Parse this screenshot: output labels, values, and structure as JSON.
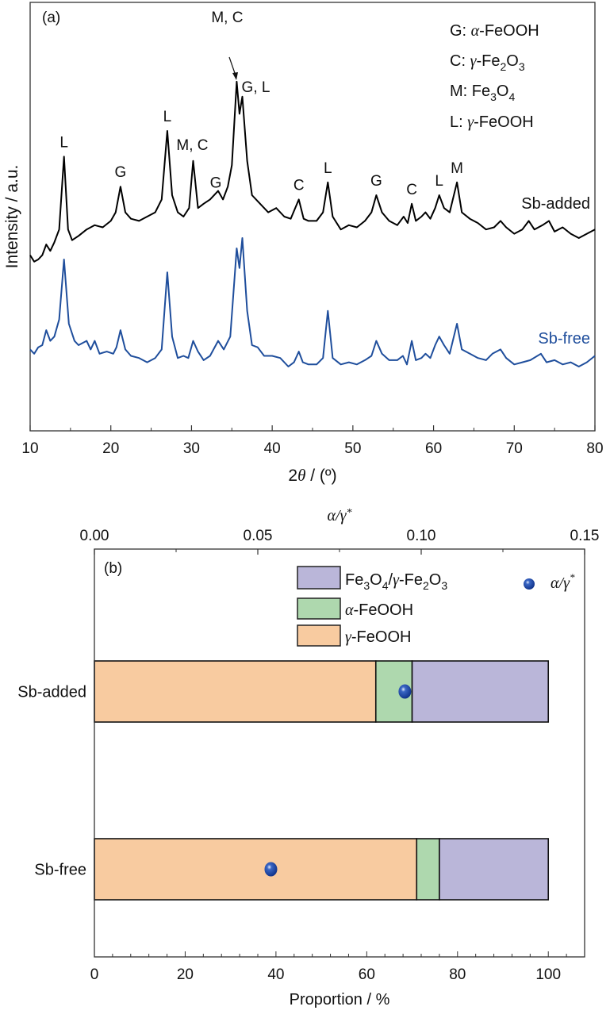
{
  "chart_data": [
    {
      "type": "line",
      "panel_label": "(a)",
      "xlabel_prefix": "2",
      "xlabel_symbol": "θ",
      "xlabel_suffix": " / (º)",
      "ylabel": "Intensity / a.u.",
      "xlim": [
        10,
        80
      ],
      "ylim": [
        0,
        100
      ],
      "xticks": [
        "10",
        "20",
        "30",
        "40",
        "50",
        "60",
        "70",
        "80"
      ],
      "xtick_values": [
        10,
        20,
        30,
        40,
        50,
        60,
        70,
        80
      ],
      "legend_lines": [
        {
          "key": "G: ",
          "greek": "α",
          "text": "-FeOOH"
        },
        {
          "key": "C: ",
          "greek": "γ",
          "text": "-Fe",
          "sub1": "2",
          "text2": "O",
          "sub2": "3"
        },
        {
          "key": "M: ",
          "greek": "",
          "text": "Fe",
          "sub1": "3",
          "text2": "O",
          "sub2": "4"
        },
        {
          "key": "L: ",
          "greek": "γ",
          "text": "-FeOOH"
        }
      ],
      "series": [
        {
          "name": "Sb-added",
          "color": "#000000",
          "points": [
            [
              10,
              41
            ],
            [
              10.5,
              39.5
            ],
            [
              11,
              40
            ],
            [
              11.5,
              41
            ],
            [
              12,
              43.5
            ],
            [
              12.5,
              42
            ],
            [
              13,
              44
            ],
            [
              13.6,
              47
            ],
            [
              14.2,
              64
            ],
            [
              14.7,
              47
            ],
            [
              15.2,
              44.5
            ],
            [
              16,
              45.5
            ],
            [
              17,
              47
            ],
            [
              18,
              48
            ],
            [
              19,
              47.5
            ],
            [
              20,
              49
            ],
            [
              20.6,
              51
            ],
            [
              21.2,
              57
            ],
            [
              21.8,
              51
            ],
            [
              22.5,
              49.5
            ],
            [
              23.5,
              49
            ],
            [
              24.5,
              50
            ],
            [
              25.5,
              51
            ],
            [
              26.3,
              54
            ],
            [
              27,
              70
            ],
            [
              27.6,
              55
            ],
            [
              28.3,
              51
            ],
            [
              29,
              50
            ],
            [
              29.7,
              52
            ],
            [
              30.2,
              63
            ],
            [
              30.8,
              52
            ],
            [
              31.5,
              53
            ],
            [
              32.3,
              54
            ],
            [
              33.3,
              56
            ],
            [
              33.9,
              54
            ],
            [
              34.5,
              57
            ],
            [
              35,
              62
            ],
            [
              35.6,
              81.5
            ],
            [
              35.95,
              74
            ],
            [
              36.3,
              78
            ],
            [
              36.9,
              63
            ],
            [
              37.5,
              55
            ],
            [
              38.5,
              53
            ],
            [
              39.5,
              51
            ],
            [
              40.5,
              52
            ],
            [
              41.5,
              50
            ],
            [
              42.3,
              49.5
            ],
            [
              43.3,
              54
            ],
            [
              43.9,
              49.5
            ],
            [
              44.5,
              49
            ],
            [
              45.5,
              49
            ],
            [
              46.3,
              51
            ],
            [
              46.9,
              58
            ],
            [
              47.5,
              50
            ],
            [
              48.5,
              47
            ],
            [
              49.5,
              48
            ],
            [
              50.5,
              47.5
            ],
            [
              51.5,
              49
            ],
            [
              52.3,
              51
            ],
            [
              52.9,
              55
            ],
            [
              53.6,
              51
            ],
            [
              54.5,
              49
            ],
            [
              55.5,
              48
            ],
            [
              56.3,
              50
            ],
            [
              56.8,
              48.5
            ],
            [
              57.3,
              53
            ],
            [
              57.8,
              49
            ],
            [
              58.5,
              50
            ],
            [
              59,
              51
            ],
            [
              59.6,
              49.5
            ],
            [
              60.2,
              52
            ],
            [
              60.7,
              55
            ],
            [
              61.3,
              52
            ],
            [
              62,
              51
            ],
            [
              62.9,
              58
            ],
            [
              63.5,
              51
            ],
            [
              64.5,
              49.5
            ],
            [
              65.5,
              48.5
            ],
            [
              66.5,
              47
            ],
            [
              67.5,
              47.5
            ],
            [
              68.3,
              49
            ],
            [
              69,
              47.5
            ],
            [
              70,
              46
            ],
            [
              71,
              47
            ],
            [
              71.8,
              49
            ],
            [
              72.5,
              47
            ],
            [
              73.5,
              48
            ],
            [
              74.3,
              49
            ],
            [
              75,
              46.5
            ],
            [
              76,
              47.5
            ],
            [
              77,
              46
            ],
            [
              78,
              45
            ],
            [
              79,
              46
            ],
            [
              80,
              47
            ]
          ]
        },
        {
          "name": "Sb-free",
          "color": "#1f4e9c",
          "points": [
            [
              10,
              19
            ],
            [
              10.5,
              18
            ],
            [
              11,
              19.5
            ],
            [
              11.5,
              20
            ],
            [
              12,
              23.5
            ],
            [
              12.5,
              21
            ],
            [
              13,
              22
            ],
            [
              13.6,
              26
            ],
            [
              14.2,
              40
            ],
            [
              14.8,
              25
            ],
            [
              15.5,
              21
            ],
            [
              16,
              20
            ],
            [
              17,
              21
            ],
            [
              17.5,
              19
            ],
            [
              18,
              21
            ],
            [
              18.6,
              18
            ],
            [
              19.5,
              18.5
            ],
            [
              20.3,
              18
            ],
            [
              20.7,
              19.5
            ],
            [
              21.2,
              23.5
            ],
            [
              21.8,
              19
            ],
            [
              22.5,
              17.5
            ],
            [
              23.5,
              17
            ],
            [
              24.5,
              16
            ],
            [
              25.5,
              17
            ],
            [
              26.3,
              19
            ],
            [
              27,
              37
            ],
            [
              27.6,
              22
            ],
            [
              28.3,
              17
            ],
            [
              29,
              17.5
            ],
            [
              29.6,
              17
            ],
            [
              30.2,
              21
            ],
            [
              30.8,
              18.5
            ],
            [
              31.5,
              16.5
            ],
            [
              32.3,
              17.5
            ],
            [
              33.3,
              21
            ],
            [
              34,
              19
            ],
            [
              34.8,
              22
            ],
            [
              35.6,
              42.6
            ],
            [
              35.95,
              38
            ],
            [
              36.3,
              45
            ],
            [
              36.9,
              28
            ],
            [
              37.5,
              20
            ],
            [
              38.2,
              19.5
            ],
            [
              39,
              17.5
            ],
            [
              40,
              17.5
            ],
            [
              41,
              17
            ],
            [
              42,
              15
            ],
            [
              42.7,
              16
            ],
            [
              43.3,
              18.5
            ],
            [
              43.8,
              16
            ],
            [
              44.5,
              15.5
            ],
            [
              45.5,
              15.5
            ],
            [
              46.3,
              17
            ],
            [
              46.9,
              28
            ],
            [
              47.5,
              17
            ],
            [
              48.5,
              15.5
            ],
            [
              49.5,
              16
            ],
            [
              50.5,
              15.5
            ],
            [
              51.5,
              16.5
            ],
            [
              52.3,
              17.5
            ],
            [
              52.9,
              21
            ],
            [
              53.6,
              18
            ],
            [
              54.5,
              16.5
            ],
            [
              55.5,
              16.5
            ],
            [
              56.2,
              17.5
            ],
            [
              56.7,
              15.5
            ],
            [
              57.3,
              21
            ],
            [
              57.8,
              16.5
            ],
            [
              58.5,
              17
            ],
            [
              59,
              18
            ],
            [
              59.6,
              17
            ],
            [
              60.2,
              20
            ],
            [
              60.7,
              22
            ],
            [
              61.3,
              20
            ],
            [
              62,
              18
            ],
            [
              62.9,
              25
            ],
            [
              63.5,
              19
            ],
            [
              64.5,
              18
            ],
            [
              65.5,
              17
            ],
            [
              66.5,
              16.5
            ],
            [
              67.3,
              18
            ],
            [
              68.3,
              19
            ],
            [
              69,
              17
            ],
            [
              70,
              15.5
            ],
            [
              71,
              16
            ],
            [
              72,
              16.5
            ],
            [
              73.3,
              18
            ],
            [
              74,
              16
            ],
            [
              75,
              16.5
            ],
            [
              76,
              15.5
            ],
            [
              77,
              16
            ],
            [
              78,
              15
            ],
            [
              79,
              16
            ],
            [
              80,
              17.5
            ]
          ]
        }
      ],
      "series_labels": [
        "Sb-added",
        "Sb-free"
      ],
      "peak_annotations": [
        {
          "label": "L",
          "x": 14.2,
          "series": "Sb-added"
        },
        {
          "label": "G",
          "x": 21.2,
          "series": "Sb-added"
        },
        {
          "label": "L",
          "x": 27.0,
          "series": "Sb-added"
        },
        {
          "label": "M, C",
          "x": 30.2,
          "series": "Sb-added"
        },
        {
          "label": "G",
          "x": 33.3,
          "series": "Sb-added"
        },
        {
          "label": "M, C",
          "x": 35.6,
          "series": "Sb-added",
          "arrow": true
        },
        {
          "label": "G, L",
          "x": 36.3,
          "series": "Sb-added"
        },
        {
          "label": "C",
          "x": 43.3,
          "series": "Sb-added"
        },
        {
          "label": "L",
          "x": 46.9,
          "series": "Sb-added"
        },
        {
          "label": "G",
          "x": 52.9,
          "series": "Sb-added"
        },
        {
          "label": "C",
          "x": 57.3,
          "series": "Sb-added"
        },
        {
          "label": "L",
          "x": 60.7,
          "series": "Sb-added"
        },
        {
          "label": "M",
          "x": 62.9,
          "series": "Sb-added"
        }
      ]
    },
    {
      "type": "bar",
      "orientation": "horizontal",
      "stacked": true,
      "panel_label": "(b)",
      "xlabel": "Proportion / %",
      "xlim": [
        0,
        108
      ],
      "xticks": [
        "0",
        "20",
        "40",
        "60",
        "80",
        "100"
      ],
      "xtick_values": [
        0,
        20,
        40,
        60,
        80,
        100
      ],
      "top_axis": {
        "label_a": "α",
        "label_sep": "/",
        "label_b": "γ",
        "label_star": "*",
        "lim": [
          0,
          0.15
        ],
        "ticks": [
          "0.00",
          "0.05",
          "0.10",
          "0.15"
        ],
        "tick_values": [
          0,
          0.05,
          0.1,
          0.15
        ]
      },
      "categories": [
        "Sb-added",
        "Sb-free"
      ],
      "series": [
        {
          "name": "γ-FeOOH",
          "color": "#f8cba0",
          "values": [
            62,
            71
          ]
        },
        {
          "name": "α-FeOOH",
          "color": "#aed8ae",
          "values": [
            8,
            5
          ]
        },
        {
          "name": "Fe3O4/γ-Fe2O3",
          "color": "#bab6d9",
          "values": [
            30,
            24
          ]
        }
      ],
      "ratio_series": {
        "name": "α/γ*",
        "color": "#1b3f9b",
        "values": [
          0.095,
          0.054
        ]
      },
      "legend": [
        {
          "pre": "Fe",
          "s1": "3",
          "mid": "O",
          "s2": "4",
          "mid2": "/",
          "greek": "γ",
          "post": "-Fe",
          "s3": "2",
          "post2": "O",
          "s4": "3",
          "color": "#bab6d9"
        },
        {
          "greek": "α",
          "post": "-FeOOH",
          "color": "#aed8ae"
        },
        {
          "greek": "γ",
          "post": "-FeOOH",
          "color": "#f8cba0"
        }
      ],
      "legend_marker_label": {
        "a": "α",
        "sep": "/",
        "b": "γ",
        "star": "*"
      }
    }
  ]
}
